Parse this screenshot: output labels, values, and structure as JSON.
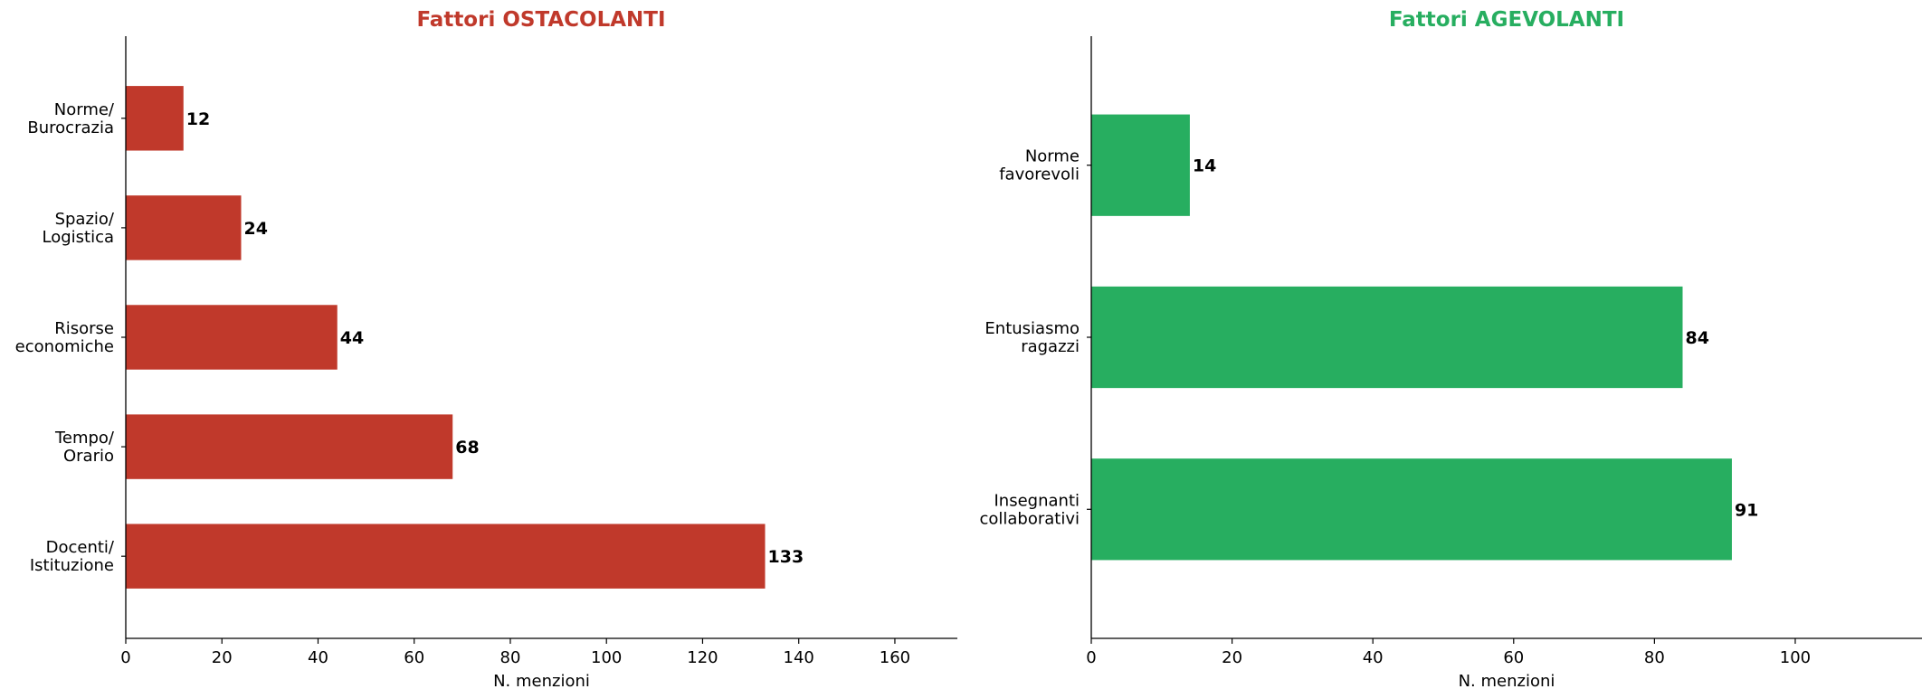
{
  "chart_data": [
    {
      "type": "bar",
      "orientation": "horizontal",
      "title": "Fattori OSTACOLANTI",
      "title_color": "#c0392b",
      "bar_color": "#c0392b",
      "categories": [
        [
          "Docenti/",
          "Istituzione"
        ],
        [
          "Tempo/",
          "Orario"
        ],
        [
          "Risorse",
          "economiche"
        ],
        [
          "Spazio/",
          "Logistica"
        ],
        [
          "Norme/",
          "Burocrazia"
        ]
      ],
      "values": [
        133,
        68,
        44,
        24,
        12
      ],
      "value_labels": [
        "133",
        "68",
        "44",
        "24",
        "12"
      ],
      "xlabel": "N. menzioni",
      "xlim": [
        0,
        173
      ],
      "xticks": [
        "0",
        "20",
        "40",
        "60",
        "80",
        "100",
        "120",
        "140",
        "160"
      ],
      "grid": false,
      "legend": "none"
    },
    {
      "type": "bar",
      "orientation": "horizontal",
      "title": "Fattori AGEVOLANTI",
      "title_color": "#27ae60",
      "bar_color": "#27ae60",
      "categories": [
        [
          "Insegnanti",
          "collaborativi"
        ],
        [
          "Entusiasmo",
          "ragazzi"
        ],
        [
          "Norme",
          "favorevoli"
        ]
      ],
      "values": [
        91,
        84,
        14
      ],
      "value_labels": [
        "91",
        "84",
        "14"
      ],
      "xlabel": "N. menzioni",
      "xlim": [
        0,
        118
      ],
      "xticks": [
        "0",
        "20",
        "40",
        "60",
        "80",
        "100"
      ],
      "grid": false,
      "legend": "none"
    }
  ]
}
